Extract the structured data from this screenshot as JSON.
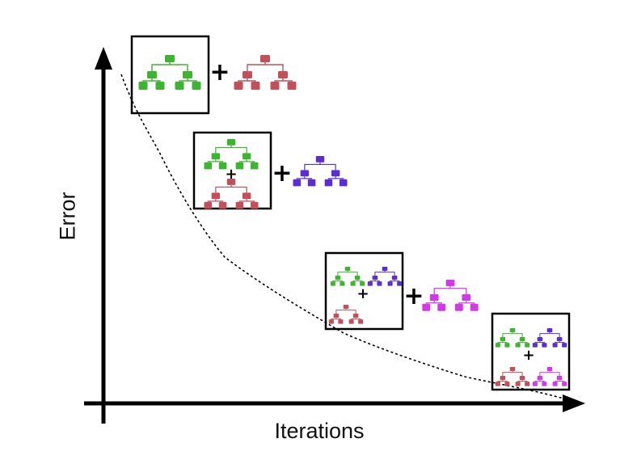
{
  "axes": {
    "x_label": "Iterations",
    "y_label": "Error"
  },
  "colors": {
    "tree_1": "#3fb332",
    "tree_2": "#c0505a",
    "tree_3": "#5a2fd0",
    "tree_4": "#d13be6",
    "axis": "#000000",
    "curve": "#000000"
  },
  "stages": [
    {
      "ensemble": [
        "tree_1"
      ],
      "added_tree": "tree_2"
    },
    {
      "ensemble": [
        "tree_1",
        "tree_2"
      ],
      "added_tree": "tree_3"
    },
    {
      "ensemble": [
        "tree_1",
        "tree_3",
        "tree_2"
      ],
      "added_tree": "tree_4"
    },
    {
      "ensemble": [
        "tree_1",
        "tree_3",
        "tree_2",
        "tree_4"
      ],
      "added_tree": null
    }
  ],
  "plus_symbol": "+",
  "trend": "error decreases with iterations"
}
